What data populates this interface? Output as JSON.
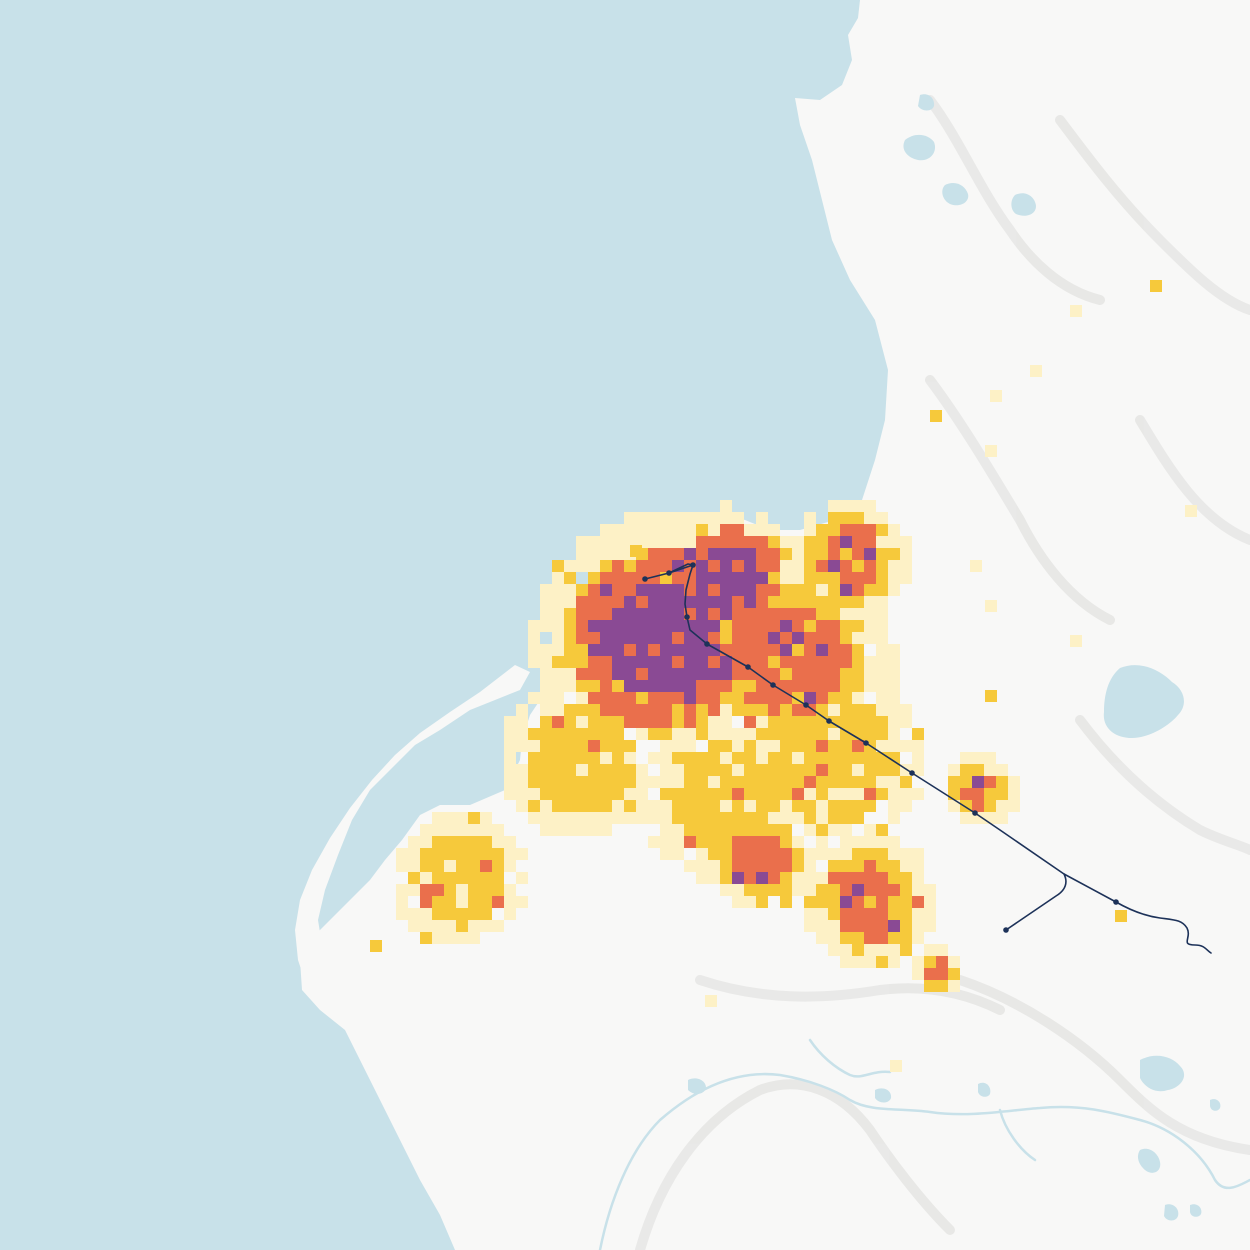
{
  "map": {
    "colors": {
      "sea": "#c8e1e9",
      "land": "#f8f8f7",
      "land_shade": "#ececea",
      "lake": "#c8e1e9",
      "rail": "#1d3259",
      "density_low": "#fdf1c6",
      "density_mid": "#f6c93b",
      "density_high": "#ea6f4c",
      "density_top": "#8a4a94"
    },
    "layers": [
      "sea",
      "land",
      "lakes",
      "rivers",
      "density-grid",
      "rail-line",
      "stations"
    ]
  }
}
